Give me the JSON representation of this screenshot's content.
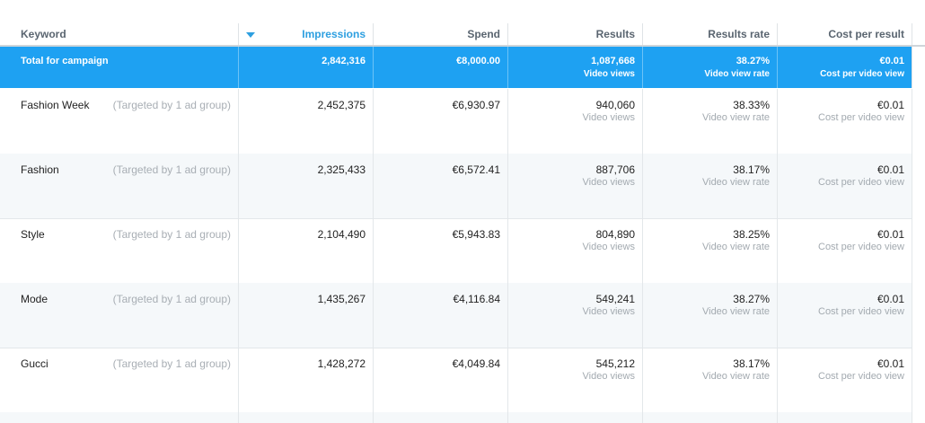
{
  "header": {
    "keyword": "Keyword",
    "impressions": "Impressions",
    "spend": "Spend",
    "results": "Results",
    "results_rate": "Results rate",
    "cost_per_result": "Cost per result"
  },
  "total": {
    "label": "Total for campaign",
    "impressions": "2,842,316",
    "spend": "€8,000.00",
    "results": "1,087,668",
    "results_sub": "Video views",
    "rate": "38.27%",
    "rate_sub": "Video view rate",
    "cost": "€0.01",
    "cost_sub": "Cost per video view"
  },
  "rows": [
    {
      "keyword": "Fashion Week",
      "targeted": "(Targeted by 1 ad group)",
      "impressions": "2,452,375",
      "spend": "€6,930.97",
      "results": "940,060",
      "results_sub": "Video views",
      "rate": "38.33%",
      "rate_sub": "Video view rate",
      "cost": "€0.01",
      "cost_sub": "Cost per video view"
    },
    {
      "keyword": "Fashion",
      "targeted": "(Targeted by 1 ad group)",
      "impressions": "2,325,433",
      "spend": "€6,572.41",
      "results": "887,706",
      "results_sub": "Video views",
      "rate": "38.17%",
      "rate_sub": "Video view rate",
      "cost": "€0.01",
      "cost_sub": "Cost per video view"
    },
    {
      "keyword": "Style",
      "targeted": "(Targeted by 1 ad group)",
      "impressions": "2,104,490",
      "spend": "€5,943.83",
      "results": "804,890",
      "results_sub": "Video views",
      "rate": "38.25%",
      "rate_sub": "Video view rate",
      "cost": "€0.01",
      "cost_sub": "Cost per video view"
    },
    {
      "keyword": "Mode",
      "targeted": "(Targeted by 1 ad group)",
      "impressions": "1,435,267",
      "spend": "€4,116.84",
      "results": "549,241",
      "results_sub": "Video views",
      "rate": "38.27%",
      "rate_sub": "Video view rate",
      "cost": "€0.01",
      "cost_sub": "Cost per video view"
    },
    {
      "keyword": "Gucci",
      "targeted": "(Targeted by 1 ad group)",
      "impressions": "1,428,272",
      "spend": "€4,049.84",
      "results": "545,212",
      "results_sub": "Video views",
      "rate": "38.17%",
      "rate_sub": "Video view rate",
      "cost": "€0.01",
      "cost_sub": "Cost per video view"
    }
  ],
  "colors": {
    "accent": "#1ea1f2",
    "sort_active": "#2d9fe0",
    "alt_row": "#f5f8fa"
  }
}
